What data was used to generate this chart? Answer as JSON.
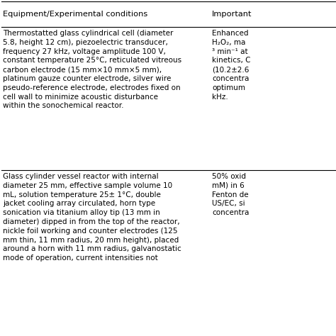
{
  "col1_header": "Equipment/Experimental conditions",
  "col2_header": "Important",
  "row1_col1": "Thermostatted glass cylindrical cell (diameter\n5.8, height 12 cm), piezoelectric transducer,\nfrequency 27 kHz, voltage amplitude 100 V,\nconstant temperature 25°C, reticulated vitreous\ncarbon electrode (15 mm×10 mm×5 mm),\nplatinum gauze counter electrode, silver wire\npseudo-reference electrode, electrodes fixed on\ncell wall to minimize acoustic disturbance\nwithin the sonochemical reactor.",
  "row1_col2": "Enhanced\nH₂O₂, ma\n³ min⁻¹ at\nkinetics, C\n(10.2±2.6\nconcentra\noptimum\nkHz.",
  "row2_col1": "Glass cylinder vessel reactor with internal\ndiameter 25 mm, effective sample volume 10\nmL, solution temperature 25± 1°C, double\njacket cooling array circulated, horn type\nsonication via titanium alloy tip (13 mm in\ndiameter) dipped in from the top of the reactor,\nnickle foil working and counter electrodes (125\nmm thin, 11 mm radius, 20 mm height), placed\naround a horn with 11 mm radius, galvanostatic\nmode of operation, current intensities not",
  "row2_col2": "50% oxid\nmM) in 6\nFenton de\nUS/EC, si\nconcentra",
  "bg_color": "#ffffff",
  "text_color": "#000000",
  "line_color": "#000000",
  "font_size": 7.5,
  "header_font_size": 8.2
}
